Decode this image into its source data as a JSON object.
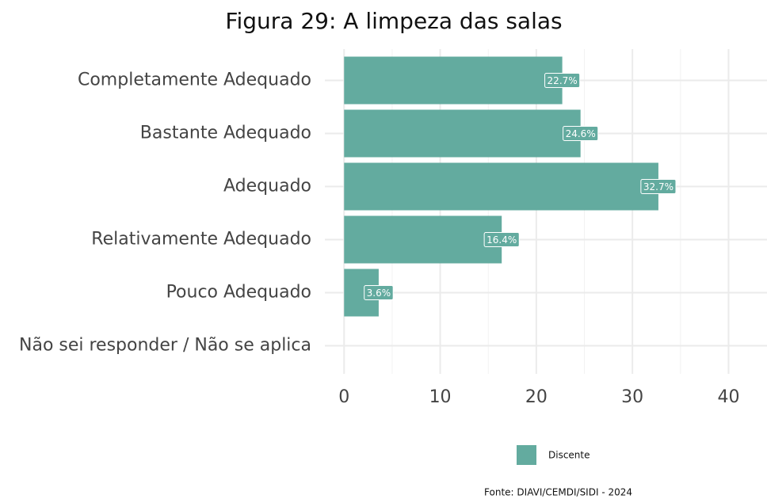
{
  "chart_data": {
    "type": "bar",
    "orientation": "horizontal",
    "title": "Figura 29: A limpeza das salas",
    "categories": [
      "Completamente Adequado",
      "Bastante Adequado",
      "Adequado",
      "Relativamente Adequado",
      "Pouco Adequado",
      "Não sei responder / Não se aplica"
    ],
    "series": [
      {
        "name": "Discente",
        "color": "#63ab9f",
        "values": [
          22.7,
          24.6,
          32.7,
          16.4,
          3.6,
          null
        ],
        "value_labels": [
          "22.7%",
          "24.6%",
          "32.7%",
          "16.4%",
          "3.6%",
          null
        ]
      }
    ],
    "xlim": [
      -2,
      44
    ],
    "xticks": [
      0,
      10,
      20,
      30,
      40
    ],
    "minor_xticks": [
      5,
      15,
      25,
      35
    ],
    "grid": true,
    "legend": "bottom",
    "caption": "Fonte: DIAVI/CEMDI/SIDI - 2024"
  }
}
